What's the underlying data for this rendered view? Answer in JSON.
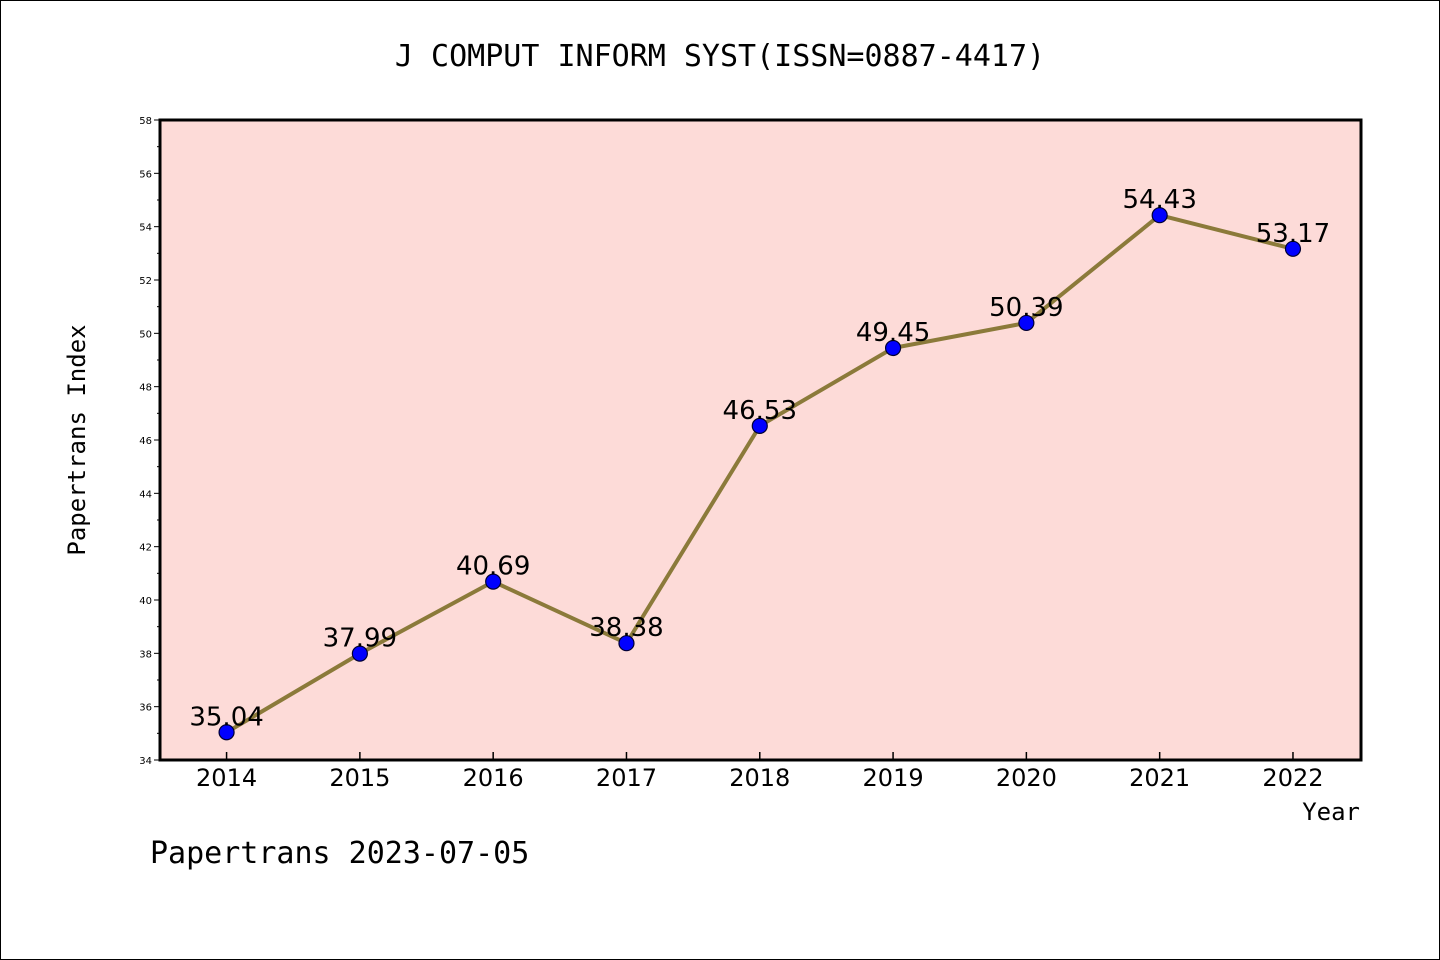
{
  "chart_data": {
    "type": "line",
    "title": "J COMPUT INFORM SYST(ISSN=0887-4417)",
    "xlabel": "Year",
    "ylabel": "Papertrans Index",
    "categories": [
      "2014",
      "2015",
      "2016",
      "2017",
      "2018",
      "2019",
      "2020",
      "2021",
      "2022"
    ],
    "series": [
      {
        "values": [
          35.04,
          37.99,
          40.69,
          38.38,
          46.53,
          49.45,
          50.39,
          54.43,
          53.17
        ]
      }
    ],
    "data_labels": [
      "35.04",
      "37.99",
      "40.69",
      "38.38",
      "46.53",
      "49.45",
      "50.39",
      "54.43",
      "53.17"
    ],
    "ylim": [
      34,
      58
    ],
    "yticks": [
      34,
      36,
      38,
      40,
      42,
      44,
      46,
      48,
      50,
      52,
      54,
      56,
      58
    ],
    "ytick_labels": [
      "34",
      "36",
      "38",
      "40",
      "42",
      "44",
      "46",
      "48",
      "50",
      "52",
      "54",
      "56",
      "58"
    ],
    "grid": false,
    "colors": {
      "plot_background": "#fddbd8",
      "line": "#8b7a3a",
      "marker": "#0000ff"
    }
  },
  "footer": "Papertrans 2023-07-05"
}
